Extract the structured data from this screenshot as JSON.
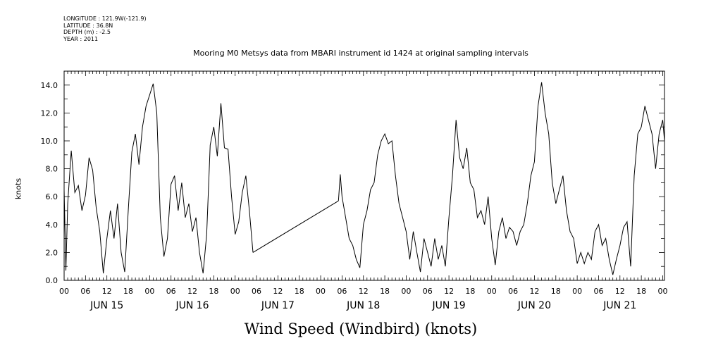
{
  "meta": {
    "longitude": "LONGITUDE : 121.9W(-121.9)",
    "latitude": "LATITUDE : 36.8N",
    "depth": "DEPTH (m) : -2.5",
    "year": "YEAR : 2011"
  },
  "chart_data": {
    "type": "line",
    "title": "Mooring M0 Metsys data from MBARI instrument id 1424 at original sampling intervals",
    "xlabel": "Wind Speed (Windbird) (knots)",
    "ylabel": "knots",
    "ylim": [
      0,
      15
    ],
    "xlim_hours_from": "JUN 15 00",
    "xlim": [
      0,
      168
    ],
    "yticks": [
      "0.0",
      "2.0",
      "4.0",
      "6.0",
      "8.0",
      "10.0",
      "12.0",
      "14.0"
    ],
    "hour_ticks": [
      "00",
      "06",
      "12",
      "18",
      "00",
      "06",
      "12",
      "18",
      "00",
      "06",
      "12",
      "18",
      "00",
      "06",
      "12",
      "18",
      "00",
      "06",
      "12",
      "18",
      "00",
      "06",
      "12",
      "18",
      "00",
      "06",
      "12",
      "18",
      "00"
    ],
    "day_labels": [
      "JUN 15",
      "JUN 16",
      "JUN 17",
      "JUN 18",
      "JUN 19",
      "JUN 20",
      "JUN 21"
    ],
    "grid": false,
    "series": [
      {
        "values": [
          [
            0,
            6.5
          ],
          [
            0.5,
            0.7
          ],
          [
            1,
            5.5
          ],
          [
            2,
            9.3
          ],
          [
            3,
            6.3
          ],
          [
            4,
            6.8
          ],
          [
            5,
            5.0
          ],
          [
            6,
            6.1
          ],
          [
            7,
            8.8
          ],
          [
            8,
            7.9
          ],
          [
            9,
            5.2
          ],
          [
            10,
            3.5
          ],
          [
            11,
            0.5
          ],
          [
            12,
            3.0
          ],
          [
            13,
            5.0
          ],
          [
            14,
            3.0
          ],
          [
            15,
            5.5
          ],
          [
            16,
            2.0
          ],
          [
            17,
            0.6
          ],
          [
            18,
            5.0
          ],
          [
            19,
            9.2
          ],
          [
            20,
            10.5
          ],
          [
            21,
            8.3
          ],
          [
            22,
            11.0
          ],
          [
            23,
            12.5
          ],
          [
            24,
            13.3
          ],
          [
            25,
            14.1
          ],
          [
            26,
            12.0
          ],
          [
            27,
            4.5
          ],
          [
            28,
            1.7
          ],
          [
            29,
            3.0
          ],
          [
            30,
            6.9
          ],
          [
            31,
            7.5
          ],
          [
            32,
            5.0
          ],
          [
            33,
            7.0
          ],
          [
            34,
            4.5
          ],
          [
            35,
            5.5
          ],
          [
            36,
            3.5
          ],
          [
            37,
            4.5
          ],
          [
            38,
            2.0
          ],
          [
            39,
            0.5
          ],
          [
            40,
            3.3
          ],
          [
            41,
            9.7
          ],
          [
            42,
            11.0
          ],
          [
            43,
            8.9
          ],
          [
            44,
            12.7
          ],
          [
            45,
            9.5
          ],
          [
            46,
            9.4
          ],
          [
            47,
            6.0
          ],
          [
            48,
            3.3
          ],
          [
            49,
            4.2
          ],
          [
            50,
            6.3
          ],
          [
            51,
            7.5
          ],
          [
            52,
            5.0
          ],
          [
            53,
            2.0
          ],
          [
            77,
            5.7
          ],
          [
            77.5,
            7.6
          ],
          [
            78,
            6.0
          ],
          [
            79,
            4.5
          ],
          [
            80,
            3.0
          ],
          [
            81,
            2.5
          ],
          [
            82,
            1.5
          ],
          [
            83,
            0.9
          ],
          [
            84,
            4.0
          ],
          [
            85,
            5.0
          ],
          [
            86,
            6.5
          ],
          [
            87,
            7.0
          ],
          [
            88,
            9.0
          ],
          [
            89,
            10.0
          ],
          [
            90,
            10.5
          ],
          [
            91,
            9.8
          ],
          [
            92,
            10.0
          ],
          [
            93,
            7.5
          ],
          [
            94,
            5.5
          ],
          [
            95,
            4.5
          ],
          [
            96,
            3.5
          ],
          [
            97,
            1.5
          ],
          [
            98,
            3.5
          ],
          [
            99,
            2.0
          ],
          [
            100,
            0.6
          ],
          [
            101,
            3.0
          ],
          [
            102,
            2.0
          ],
          [
            103,
            1.0
          ],
          [
            104,
            3.0
          ],
          [
            105,
            1.5
          ],
          [
            106,
            2.5
          ],
          [
            107,
            1.0
          ],
          [
            108,
            4.5
          ],
          [
            109,
            7.5
          ],
          [
            110,
            11.5
          ],
          [
            111,
            8.8
          ],
          [
            112,
            8.0
          ],
          [
            113,
            9.5
          ],
          [
            114,
            7.0
          ],
          [
            115,
            6.5
          ],
          [
            116,
            4.5
          ],
          [
            117,
            5.0
          ],
          [
            118,
            4.0
          ],
          [
            119,
            6.0
          ],
          [
            120,
            3.0
          ],
          [
            121,
            1.1
          ],
          [
            122,
            3.5
          ],
          [
            123,
            4.5
          ],
          [
            124,
            3.0
          ],
          [
            125,
            3.8
          ],
          [
            126,
            3.5
          ],
          [
            127,
            2.5
          ],
          [
            128,
            3.5
          ],
          [
            129,
            4.0
          ],
          [
            130,
            5.5
          ],
          [
            131,
            7.5
          ],
          [
            132,
            8.5
          ],
          [
            133,
            12.5
          ],
          [
            134,
            14.2
          ],
          [
            135,
            12.0
          ],
          [
            136,
            10.5
          ],
          [
            137,
            7.0
          ],
          [
            138,
            5.5
          ],
          [
            139,
            6.5
          ],
          [
            140,
            7.5
          ],
          [
            141,
            5.0
          ],
          [
            142,
            3.5
          ],
          [
            143,
            3.0
          ],
          [
            144,
            1.2
          ],
          [
            145,
            2.0
          ],
          [
            146,
            1.2
          ],
          [
            147,
            2.0
          ],
          [
            148,
            1.5
          ],
          [
            149,
            3.5
          ],
          [
            150,
            4.0
          ],
          [
            151,
            2.5
          ],
          [
            152,
            3.0
          ],
          [
            153,
            1.5
          ],
          [
            154,
            0.4
          ],
          [
            155,
            1.5
          ],
          [
            156,
            2.5
          ],
          [
            157,
            3.8
          ],
          [
            158,
            4.2
          ],
          [
            159,
            1.0
          ],
          [
            160,
            7.5
          ],
          [
            161,
            10.5
          ],
          [
            162,
            11.0
          ],
          [
            163,
            12.5
          ],
          [
            164,
            11.5
          ],
          [
            165,
            10.5
          ],
          [
            166,
            8.0
          ],
          [
            167,
            10.5
          ],
          [
            168,
            11.5
          ],
          [
            168.5,
            10.0
          ]
        ]
      }
    ],
    "gap_line": [
      [
        53,
        2.0
      ],
      [
        77,
        5.7
      ]
    ]
  }
}
